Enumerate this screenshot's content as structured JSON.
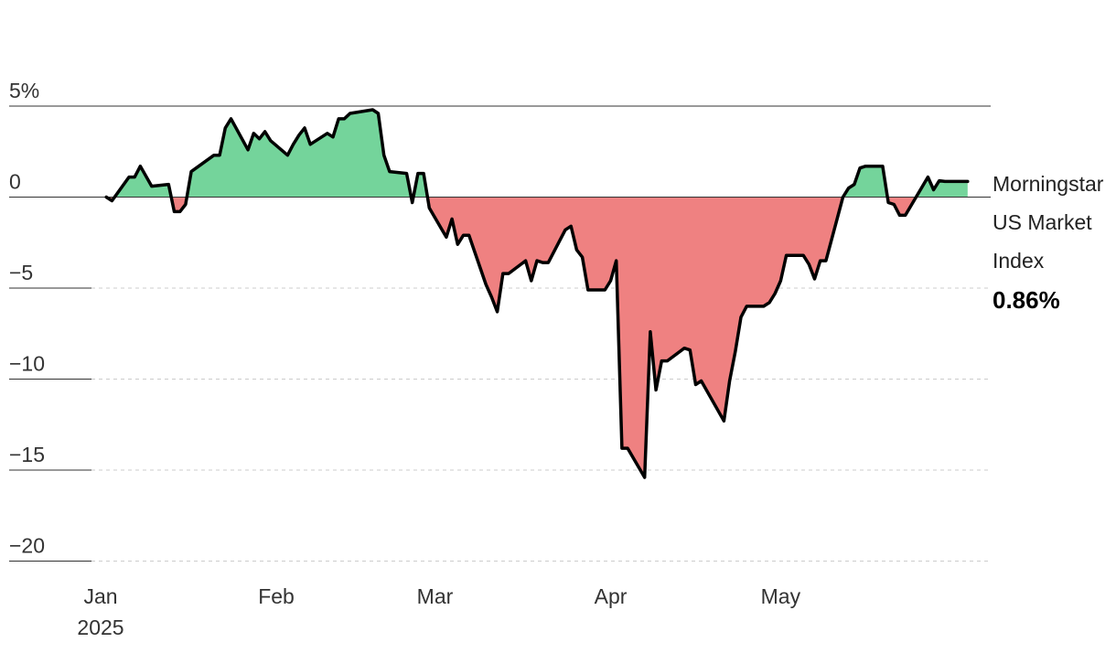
{
  "chart_data": {
    "type": "area",
    "title": "",
    "xlabel": "",
    "ylabel": "",
    "ylim": [
      -20,
      5
    ],
    "xlim": [
      "2025-01-01",
      "2025-06-04"
    ],
    "grid": true,
    "positive_color": "#74d49b",
    "negative_color": "#ef8181",
    "line_color": "#000000",
    "y_ticks": [
      {
        "value": 5,
        "label": "5%"
      },
      {
        "value": 0,
        "label": "0"
      },
      {
        "value": -5,
        "label": "−5"
      },
      {
        "value": -10,
        "label": "−10"
      },
      {
        "value": -15,
        "label": "−15"
      },
      {
        "value": -20,
        "label": "−20"
      }
    ],
    "x_ticks": [
      {
        "date": "2025-01-01",
        "label": "Jan",
        "sublabel": "2025"
      },
      {
        "date": "2025-02-01",
        "label": "Feb",
        "sublabel": ""
      },
      {
        "date": "2025-03-01",
        "label": "Mar",
        "sublabel": ""
      },
      {
        "date": "2025-04-01",
        "label": "Apr",
        "sublabel": ""
      },
      {
        "date": "2025-05-01",
        "label": "May",
        "sublabel": ""
      }
    ],
    "series": [
      {
        "name": "Morningstar US Market Index",
        "label_lines": [
          "Morningstar",
          "US Market",
          "Index"
        ],
        "last_value_label": "0.86%",
        "x": [
          "2025-01-02",
          "2025-01-03",
          "2025-01-06",
          "2025-01-07",
          "2025-01-08",
          "2025-01-10",
          "2025-01-13",
          "2025-01-14",
          "2025-01-15",
          "2025-01-16",
          "2025-01-17",
          "2025-01-21",
          "2025-01-22",
          "2025-01-23",
          "2025-01-24",
          "2025-01-27",
          "2025-01-28",
          "2025-01-29",
          "2025-01-30",
          "2025-01-31",
          "2025-02-03",
          "2025-02-04",
          "2025-02-05",
          "2025-02-06",
          "2025-02-07",
          "2025-02-10",
          "2025-02-11",
          "2025-02-12",
          "2025-02-13",
          "2025-02-14",
          "2025-02-18",
          "2025-02-19",
          "2025-02-20",
          "2025-02-21",
          "2025-02-24",
          "2025-02-25",
          "2025-02-26",
          "2025-02-27",
          "2025-02-28",
          "2025-03-03",
          "2025-03-04",
          "2025-03-05",
          "2025-03-06",
          "2025-03-07",
          "2025-03-10",
          "2025-03-11",
          "2025-03-12",
          "2025-03-13",
          "2025-03-14",
          "2025-03-17",
          "2025-03-18",
          "2025-03-19",
          "2025-03-20",
          "2025-03-21",
          "2025-03-24",
          "2025-03-25",
          "2025-03-26",
          "2025-03-27",
          "2025-03-28",
          "2025-03-31",
          "2025-04-01",
          "2025-04-02",
          "2025-04-03",
          "2025-04-04",
          "2025-04-07",
          "2025-04-08",
          "2025-04-09",
          "2025-04-10",
          "2025-04-11",
          "2025-04-14",
          "2025-04-15",
          "2025-04-16",
          "2025-04-17",
          "2025-04-21",
          "2025-04-22",
          "2025-04-23",
          "2025-04-24",
          "2025-04-25",
          "2025-04-28",
          "2025-04-29",
          "2025-04-30",
          "2025-05-01",
          "2025-05-02",
          "2025-05-05",
          "2025-05-06",
          "2025-05-07",
          "2025-05-08",
          "2025-05-09",
          "2025-05-12",
          "2025-05-13",
          "2025-05-14",
          "2025-05-15",
          "2025-05-16",
          "2025-05-19",
          "2025-05-20",
          "2025-05-21",
          "2025-05-22",
          "2025-05-23",
          "2025-05-27",
          "2025-05-28",
          "2025-05-29",
          "2025-05-30",
          "2025-06-02",
          "2025-06-03"
        ],
        "values": [
          0.0,
          -0.2,
          1.1,
          1.1,
          1.7,
          0.6,
          0.7,
          -0.8,
          -0.8,
          -0.4,
          1.4,
          2.3,
          2.3,
          3.8,
          4.3,
          2.6,
          3.5,
          3.2,
          3.6,
          3.1,
          2.3,
          2.9,
          3.4,
          3.8,
          2.9,
          3.5,
          3.3,
          4.3,
          4.3,
          4.6,
          4.8,
          4.6,
          2.3,
          1.4,
          1.3,
          -0.3,
          1.3,
          1.3,
          -0.6,
          -2.2,
          -1.2,
          -2.6,
          -2.1,
          -2.1,
          -4.8,
          -5.5,
          -6.3,
          -4.2,
          -4.2,
          -3.5,
          -4.6,
          -3.5,
          -3.6,
          -3.6,
          -1.8,
          -1.6,
          -2.9,
          -3.3,
          -5.1,
          -5.1,
          -4.6,
          -3.5,
          -13.8,
          -13.8,
          -15.4,
          -7.4,
          -10.6,
          -9.0,
          -9.0,
          -8.3,
          -8.4,
          -10.3,
          -10.1,
          -12.3,
          -10.1,
          -8.5,
          -6.6,
          -6.0,
          -6.0,
          -5.8,
          -5.3,
          -4.6,
          -3.2,
          -3.2,
          -3.7,
          -4.5,
          -3.5,
          -3.5,
          0.0,
          0.5,
          0.7,
          1.6,
          1.7,
          1.7,
          -0.3,
          -0.4,
          -1.0,
          -1.0,
          1.1,
          0.4,
          0.9,
          0.86,
          0.86,
          0.86
        ]
      }
    ]
  }
}
